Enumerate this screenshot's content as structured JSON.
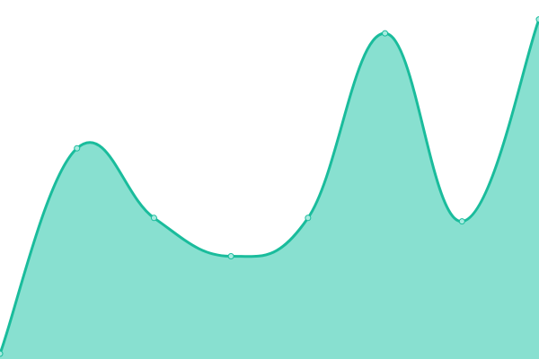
{
  "chart_data": {
    "type": "area",
    "title": "",
    "xlabel": "",
    "ylabel": "",
    "x": [
      0,
      1,
      2,
      3,
      4,
      5,
      6,
      7
    ],
    "series": [
      {
        "values": [
          1,
          60,
          40,
          29,
          40,
          93,
          39,
          97
        ]
      }
    ],
    "ylim": [
      0,
      100
    ],
    "grid": false,
    "axes_visible": false,
    "smooth": true,
    "markers": true,
    "colors": {
      "line": "#1abc9c",
      "fill": "#88e0d0",
      "marker_fill": "#a8ebe0"
    }
  }
}
